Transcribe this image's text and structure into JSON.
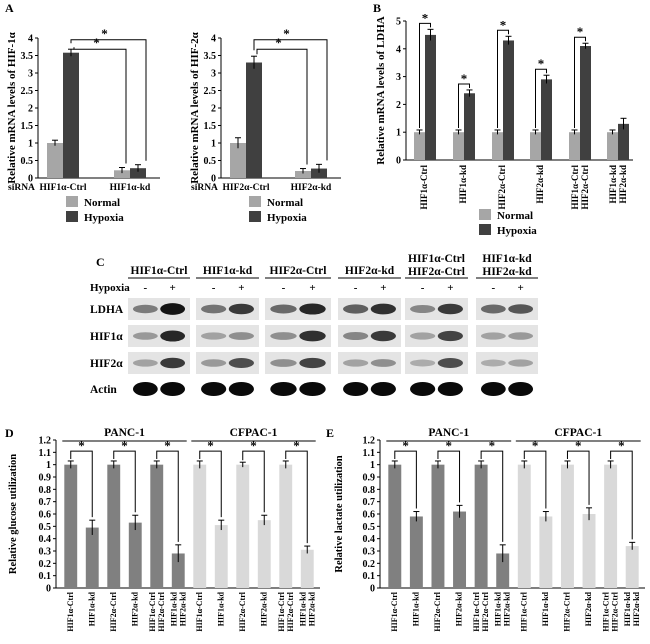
{
  "colors": {
    "normal": "#a6a6a6",
    "hypoxia": "#404040",
    "panc": "#808080",
    "cfpac": "#d9d9d9"
  },
  "chart_data": [
    {
      "panel": "A",
      "type": "bar",
      "ylabel": "Relative mRNA levels of HIF-1α",
      "ylim": [
        0,
        4
      ],
      "yticks": [
        "0",
        "0.5",
        "1",
        "1.5",
        "2",
        "2.5",
        "3",
        "3.5",
        "4"
      ],
      "row_label": "siRNA",
      "categories": [
        "HIF1α-Ctrl",
        "HIF1α-kd"
      ],
      "series": [
        {
          "name": "Normal",
          "values": [
            1.0,
            0.22
          ],
          "err": [
            0.08,
            0.08
          ]
        },
        {
          "name": "Hypoxia",
          "values": [
            3.58,
            0.28
          ],
          "err": [
            0.1,
            0.1
          ]
        }
      ],
      "sig": [
        "*",
        "*"
      ]
    },
    {
      "panel": "",
      "type": "bar",
      "ylabel": "Relative mRNA levels of HIF-2α",
      "ylim": [
        0,
        4
      ],
      "yticks": [
        "0",
        "0.5",
        "1",
        "1.5",
        "2",
        "2.5",
        "3",
        "3.5",
        "4"
      ],
      "row_label": "siRNA",
      "categories": [
        "HIF2α-Ctrl",
        "HIF2α-kd"
      ],
      "series": [
        {
          "name": "Normal",
          "values": [
            1.0,
            0.2
          ],
          "err": [
            0.15,
            0.07
          ]
        },
        {
          "name": "Hypoxia",
          "values": [
            3.3,
            0.27
          ],
          "err": [
            0.18,
            0.12
          ]
        }
      ],
      "sig": [
        "*",
        "*"
      ]
    },
    {
      "panel": "B",
      "type": "bar",
      "ylabel": "Relative mRNA levels of LDHA",
      "ylim": [
        0,
        5
      ],
      "yticks": [
        "0",
        "1",
        "2",
        "3",
        "4",
        "5"
      ],
      "categories": [
        "HIF1α-Ctrl",
        "HIF1α-kd",
        "HIF2α-Ctrl",
        "HIF2α-kd",
        "HIF1α-Ctrl HIF2α-Ctrl",
        "HIF1α-kd HIF2α-kd"
      ],
      "series": [
        {
          "name": "Normal",
          "values": [
            1.0,
            1.0,
            1.0,
            1.0,
            1.0,
            1.0
          ],
          "err": [
            0.08,
            0.08,
            0.08,
            0.08,
            0.08,
            0.08
          ]
        },
        {
          "name": "Hypoxia",
          "values": [
            4.5,
            2.4,
            4.3,
            2.9,
            4.1,
            1.3
          ],
          "err": [
            0.2,
            0.12,
            0.15,
            0.15,
            0.1,
            0.2
          ]
        }
      ],
      "sig": [
        "*",
        "*",
        "*",
        "*",
        "*"
      ]
    },
    {
      "panel": "D",
      "type": "bar",
      "ylabel": "Relative glucose utilization",
      "ylim": [
        0,
        1.2
      ],
      "yticks": [
        "0",
        "0.1",
        "0.2",
        "0.3",
        "0.4",
        "0.5",
        "0.6",
        "0.7",
        "0.8",
        "0.9",
        "1",
        "1.1",
        "1.2"
      ],
      "groups": [
        "PANC-1",
        "CFPAC-1"
      ],
      "categories": [
        "HIF1α-Ctrl",
        "HIF1α-kd",
        "HIF2α-Ctrl",
        "HIF2α-kd",
        "HIF1α-Ctrl HIF2α-Ctrl",
        "HIF1α-kd HIF2α-kd",
        "HIF1α-Ctrl",
        "HIF1α-kd",
        "HIF2α-Ctrl",
        "HIF2α-kd",
        "HIF1α-Ctrl HIF2α-Ctrl",
        "HIF1α-kd HIF2α-kd"
      ],
      "values": [
        1.0,
        0.49,
        1.0,
        0.53,
        1.0,
        0.28,
        1.0,
        0.51,
        1.0,
        0.55,
        1.0,
        0.31
      ],
      "err": [
        0.03,
        0.06,
        0.03,
        0.06,
        0.03,
        0.07,
        0.03,
        0.04,
        0.02,
        0.04,
        0.03,
        0.03
      ],
      "sig": [
        "*",
        "*",
        "*",
        "*",
        "*",
        "*"
      ]
    },
    {
      "panel": "E",
      "type": "bar",
      "ylabel": "Relative lactate utilization",
      "ylim": [
        0,
        1.2
      ],
      "yticks": [
        "0",
        "0.1",
        "0.2",
        "0.3",
        "0.4",
        "0.5",
        "0.6",
        "0.7",
        "0.8",
        "0.9",
        "1",
        "1.1",
        "1.2"
      ],
      "groups": [
        "PANC-1",
        "CFPAC-1"
      ],
      "categories": [
        "HIF1α-Ctrl",
        "HIF1α-kd",
        "HIF2α-Ctrl",
        "HIF2α-kd",
        "HIF1α-Ctrl HIF2α-Ctrl",
        "HIF1α-kd HIF2α-kd",
        "HIF1α-Ctrl",
        "HIF1α-kd",
        "HIF2α-Ctrl",
        "HIF2α-kd",
        "HIF1α-Ctrl HIF2α-Ctrl",
        "HIF1α-kd HIF2α-kd"
      ],
      "values": [
        1.0,
        0.58,
        1.0,
        0.62,
        1.0,
        0.28,
        1.0,
        0.58,
        1.0,
        0.6,
        1.0,
        0.34
      ],
      "err": [
        0.03,
        0.04,
        0.03,
        0.05,
        0.03,
        0.07,
        0.03,
        0.04,
        0.03,
        0.05,
        0.03,
        0.03
      ],
      "sig": [
        "*",
        "*",
        "*",
        "*",
        "*",
        "*"
      ]
    }
  ],
  "legend": {
    "normal": "Normal",
    "hypoxia": "Hypoxia"
  },
  "blot": {
    "panel": "C",
    "columns": [
      "HIF1α-Ctrl",
      "HIF1α-kd",
      "HIF2α-Ctrl",
      "HIF2α-kd",
      "HIF1α-Ctrl HIF2α-Ctrl",
      "HIF1α-kd HIF2α-kd"
    ],
    "condition_label": "Hypoxia",
    "signs": [
      "-",
      "+"
    ],
    "rows": [
      "LDHA",
      "HIF1α",
      "HIF2α",
      "Actin"
    ],
    "intensity": {
      "LDHA": [
        [
          0.4,
          0.95
        ],
        [
          0.45,
          0.75
        ],
        [
          0.5,
          0.85
        ],
        [
          0.55,
          0.8
        ],
        [
          0.35,
          0.75
        ],
        [
          0.5,
          0.6
        ]
      ],
      "HIF1α": [
        [
          0.25,
          0.85
        ],
        [
          0.2,
          0.3
        ],
        [
          0.3,
          0.8
        ],
        [
          0.35,
          0.75
        ],
        [
          0.2,
          0.7
        ],
        [
          0.2,
          0.25
        ]
      ],
      "HIF2α": [
        [
          0.2,
          0.75
        ],
        [
          0.25,
          0.65
        ],
        [
          0.3,
          0.7
        ],
        [
          0.2,
          0.3
        ],
        [
          0.15,
          0.65
        ],
        [
          0.15,
          0.2
        ]
      ],
      "Actin": [
        [
          1,
          1
        ],
        [
          1,
          1
        ],
        [
          1,
          1
        ],
        [
          1,
          1
        ],
        [
          1,
          1
        ],
        [
          1,
          1
        ]
      ]
    }
  }
}
